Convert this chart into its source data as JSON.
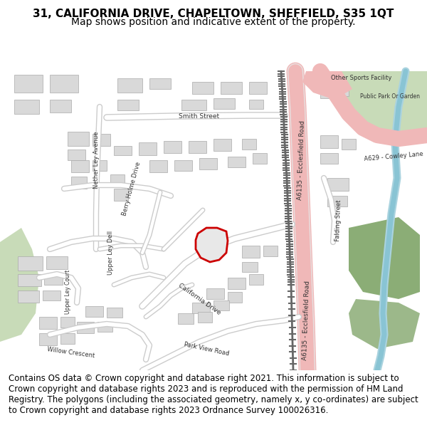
{
  "title_line1": "31, CALIFORNIA DRIVE, CHAPELTOWN, SHEFFIELD, S35 1QT",
  "title_line2": "Map shows position and indicative extent of the property.",
  "footer_text": "Contains OS data © Crown copyright and database right 2021. This information is subject to Crown copyright and database rights 2023 and is reproduced with the permission of HM Land Registry. The polygons (including the associated geometry, namely x, y co-ordinates) are subject to Crown copyright and database rights 2023 Ordnance Survey 100026316.",
  "bg_color": "#f2efe9",
  "map_bg": "#f2efe9",
  "road_color_major": "#f0b8b8",
  "road_color_minor": "#ffffff",
  "road_outline": "#cccccc",
  "building_fill": "#d9d9d9",
  "building_outline": "#aaaaaa",
  "green_area": "#c8dbb8",
  "water_color": "#aad3df",
  "property_color": "#cc0000",
  "property_fill": "#f0f0f0",
  "title_fontsize": 11,
  "subtitle_fontsize": 10,
  "footer_fontsize": 8.5,
  "header_bg": "#ffffff",
  "footer_bg": "#ffffff"
}
